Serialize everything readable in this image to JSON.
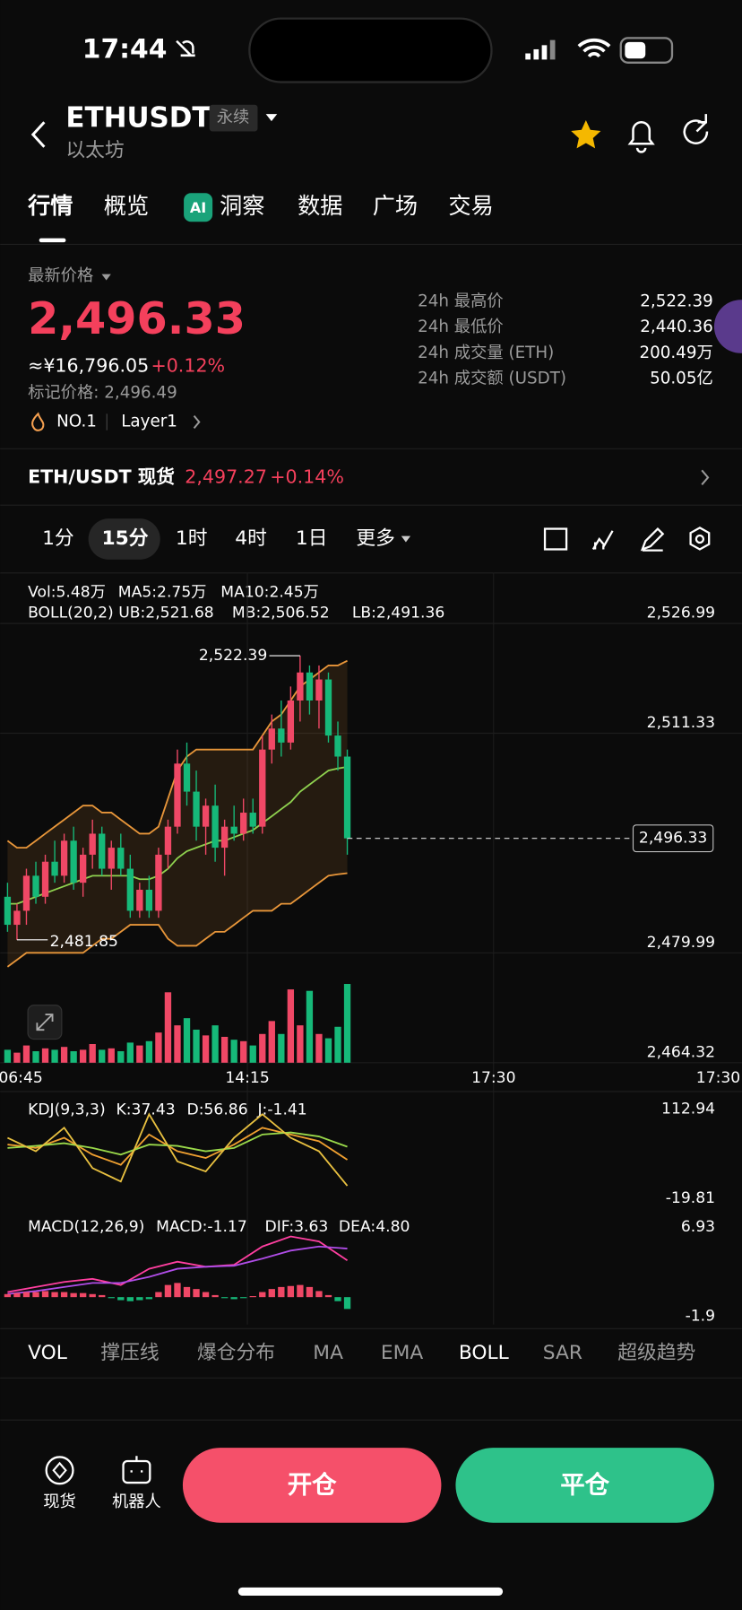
{
  "status_bar": {
    "time": "17:44"
  },
  "header": {
    "symbol": "ETHUSDT",
    "tag": "永续",
    "name": "以太坊"
  },
  "tabs": [
    "行情",
    "概览",
    "洞察",
    "数据",
    "广场",
    "交易"
  ],
  "price": {
    "label": "最新价格",
    "last": "2,496.33",
    "approx": "≈¥16,796.05",
    "change": "+0.12%",
    "mark": "标记价格: 2,496.49",
    "rank": "NO.1",
    "sector": "Layer1"
  },
  "stats": [
    {
      "label": "24h 最高价",
      "value": "2,522.39"
    },
    {
      "label": "24h 最低价",
      "value": "2,440.36"
    },
    {
      "label": "24h 成交量 (ETH)",
      "value": "200.49万"
    },
    {
      "label": "24h 成交额 (USDT)",
      "value": "50.05亿"
    }
  ],
  "spot": {
    "name": "ETH/USDT 现货",
    "price": "2,497.27",
    "change": "+0.14%"
  },
  "intervals": [
    "1分",
    "15分",
    "1时",
    "4时",
    "1日",
    "更多"
  ],
  "chart": {
    "legend": {
      "vol": "Vol:5.48万",
      "ma5": "MA5:2.75万",
      "ma10": "MA10:2.45万",
      "boll": "BOLL(20,2) UB:2,521.68",
      "mb": "MB:2,506.52",
      "lb": "LB:2,491.36"
    },
    "ylim": [
      2464.32,
      2534.2
    ],
    "yticks": [
      {
        "value": 2526.99,
        "label": "2,526.99"
      },
      {
        "value": 2511.33,
        "label": "2,511.33"
      },
      {
        "value": 2479.99,
        "label": "2,479.99"
      },
      {
        "value": 2464.32,
        "label": "2,464.32"
      }
    ],
    "last_price": {
      "value": 2496.33,
      "label": "2,496.33"
    },
    "high_label": "2,522.39",
    "low_label": "2,481.85",
    "xticks": [
      "06:45",
      "14:15",
      "17:30",
      "17:30"
    ],
    "up_color": "#f04866",
    "down_color": "#16b979",
    "candles": [
      [
        2488,
        2490,
        2483,
        2484
      ],
      [
        2484,
        2487,
        2481.85,
        2486
      ],
      [
        2486,
        2492,
        2484,
        2491
      ],
      [
        2491,
        2493,
        2487,
        2488
      ],
      [
        2488,
        2494,
        2487,
        2493
      ],
      [
        2493,
        2496,
        2490,
        2491
      ],
      [
        2491,
        2497,
        2490,
        2496
      ],
      [
        2496,
        2498,
        2489,
        2490
      ],
      [
        2490,
        2495,
        2488,
        2494
      ],
      [
        2494,
        2499,
        2492,
        2497
      ],
      [
        2497,
        2498,
        2491,
        2492
      ],
      [
        2492,
        2496,
        2489,
        2495
      ],
      [
        2495,
        2497,
        2491,
        2492
      ],
      [
        2492,
        2494,
        2485,
        2486
      ],
      [
        2486,
        2490,
        2485,
        2489
      ],
      [
        2489,
        2491,
        2485,
        2486
      ],
      [
        2486,
        2495,
        2485,
        2494
      ],
      [
        2494,
        2499,
        2492,
        2498
      ],
      [
        2498,
        2509,
        2497,
        2507
      ],
      [
        2507,
        2510,
        2501,
        2503
      ],
      [
        2503,
        2506,
        2496,
        2498
      ],
      [
        2498,
        2502,
        2494,
        2501
      ],
      [
        2501,
        2504,
        2493,
        2495
      ],
      [
        2495,
        2499,
        2491,
        2498
      ],
      [
        2498,
        2501,
        2496,
        2497
      ],
      [
        2497,
        2502,
        2496,
        2500
      ],
      [
        2500,
        2502,
        2497,
        2498
      ],
      [
        2498,
        2511,
        2497,
        2509
      ],
      [
        2509,
        2514,
        2507,
        2512
      ],
      [
        2512,
        2516,
        2508,
        2510
      ],
      [
        2510,
        2518,
        2509,
        2516
      ],
      [
        2516,
        2522.39,
        2513,
        2520
      ],
      [
        2520,
        2521,
        2514,
        2516
      ],
      [
        2516,
        2521,
        2512,
        2519
      ],
      [
        2519,
        2520,
        2510,
        2511
      ],
      [
        2511,
        2513,
        2506,
        2508
      ],
      [
        2508,
        2509,
        2494,
        2496.33
      ]
    ],
    "volumes": [
      0.9,
      0.7,
      1.2,
      0.8,
      1.0,
      0.9,
      1.1,
      0.8,
      0.9,
      1.3,
      0.9,
      1.0,
      0.8,
      1.4,
      1.2,
      1.5,
      2.1,
      4.9,
      2.6,
      3.1,
      2.3,
      1.9,
      2.6,
      1.8,
      1.6,
      1.5,
      1.2,
      2.0,
      2.9,
      2.0,
      5.1,
      2.6,
      5.0,
      2.0,
      1.7,
      2.5,
      5.48
    ],
    "boll": {
      "ub": [
        2496,
        2495,
        2495,
        2496,
        2497,
        2498,
        2499,
        2500,
        2501,
        2501,
        2500,
        2500,
        2499,
        2498,
        2497,
        2497,
        2498,
        2502,
        2506,
        2508,
        2509,
        2509,
        2509,
        2509,
        2509,
        2509,
        2509,
        2511,
        2513,
        2514,
        2516,
        2518,
        2519,
        2520,
        2521,
        2521,
        2521.68
      ],
      "mb": [
        2487,
        2487,
        2487.5,
        2488,
        2488.5,
        2489,
        2489.5,
        2490,
        2490.5,
        2491,
        2491,
        2491,
        2491,
        2491,
        2490.5,
        2490.5,
        2491,
        2492,
        2493.5,
        2494.5,
        2495,
        2495.5,
        2496,
        2496,
        2496.5,
        2497,
        2497.5,
        2498.5,
        2499.5,
        2500.5,
        2501.5,
        2503,
        2504,
        2505,
        2506,
        2506.3,
        2506.52
      ],
      "lb": [
        2478,
        2479,
        2480,
        2480,
        2480,
        2480,
        2480,
        2480,
        2480,
        2481,
        2482,
        2482,
        2483,
        2484,
        2484,
        2484,
        2484,
        2482,
        2481,
        2481,
        2481,
        2482,
        2483,
        2483,
        2484,
        2485,
        2486,
        2486,
        2486,
        2487,
        2487,
        2488,
        2489,
        2490,
        2491,
        2491.2,
        2491.36
      ],
      "ub_color": "#e8963a",
      "mb_color": "#8fd14f",
      "lb_color": "#e8963a"
    }
  },
  "kdj": {
    "title": "KDJ(9,3,3)",
    "k_label": "K:37.43",
    "d_label": "D:56.86",
    "j_label": "J:-1.41",
    "ylim": [
      -19.81,
      112.94
    ],
    "yticks": [
      112.94,
      -19.81
    ],
    "series": [
      {
        "name": "K",
        "color": "#f0a030",
        "values": [
          60,
          55,
          70,
          45,
          30,
          75,
          50,
          40,
          60,
          85,
          75,
          65,
          37.43
        ]
      },
      {
        "name": "D",
        "color": "#9ad94a",
        "values": [
          55,
          58,
          62,
          55,
          45,
          60,
          58,
          50,
          55,
          75,
          78,
          72,
          56.86
        ]
      },
      {
        "name": "J",
        "color": "#e8c040",
        "values": [
          70,
          50,
          85,
          25,
          5,
          105,
          35,
          20,
          70,
          105,
          70,
          50,
          -1.41
        ]
      }
    ]
  },
  "macd": {
    "title": "MACD(12,26,9)",
    "macd_label": "MACD:-1.17",
    "dif_label": "DIF:3.63",
    "dea_label": "DEA:4.80",
    "ylim": [
      -1.9,
      6.93
    ],
    "yticks": [
      6.93,
      -1.9
    ],
    "series": [
      {
        "name": "DIF",
        "color": "#ff3fa0",
        "values": [
          0.5,
          1.0,
          1.5,
          1.8,
          1.2,
          2.8,
          3.5,
          3.0,
          3.2,
          5.0,
          6.0,
          5.5,
          3.63
        ]
      },
      {
        "name": "DEA",
        "color": "#b04de8",
        "values": [
          0.3,
          0.6,
          1.0,
          1.4,
          1.4,
          2.0,
          2.8,
          3.0,
          3.1,
          3.8,
          4.6,
          5.0,
          4.8
        ]
      }
    ],
    "histogram": [
      0.3,
      0.4,
      0.5,
      0.5,
      0.6,
      0.5,
      0.5,
      0.4,
      0.4,
      0.3,
      0.2,
      -0.1,
      -0.3,
      -0.4,
      -0.3,
      -0.2,
      0.5,
      1.2,
      1.4,
      1.0,
      0.8,
      0.5,
      0.2,
      -0.1,
      -0.2,
      -0.1,
      0.1,
      0.5,
      0.8,
      1.0,
      1.1,
      1.2,
      1.0,
      0.6,
      0.2,
      -0.4,
      -1.17
    ]
  },
  "indicators": [
    "VOL",
    "撑压线",
    "爆仓分布",
    "MA",
    "EMA",
    "BOLL",
    "SAR",
    "超级趋势"
  ],
  "bottom": {
    "spot": "现货",
    "robot": "机器人",
    "open": "开仓",
    "close": "平仓"
  }
}
